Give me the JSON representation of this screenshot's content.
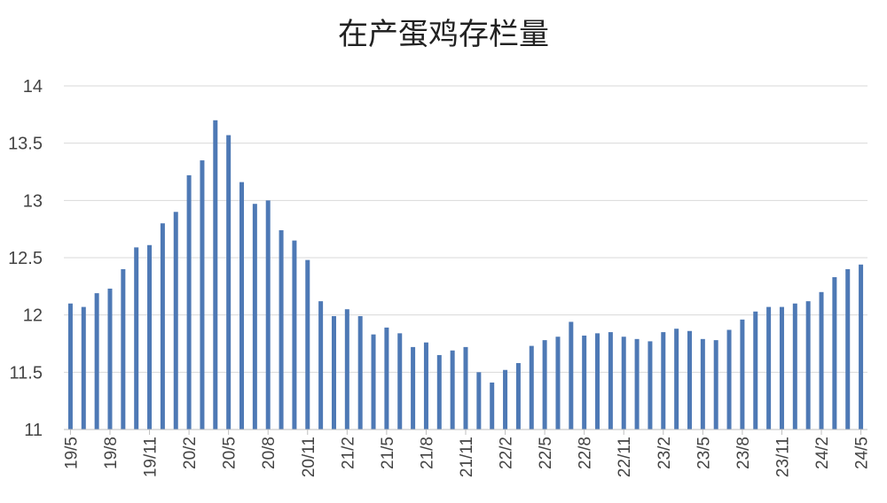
{
  "chart_data": {
    "type": "bar",
    "title": "在产蛋鸡存栏量",
    "xlabel": "",
    "ylabel": "",
    "ylim": [
      11,
      14
    ],
    "yticks": [
      "11",
      "11.5",
      "12",
      "12.5",
      "13",
      "13.5",
      "14"
    ],
    "grid": true,
    "legend": "none",
    "bar_color": "#4E79B5",
    "categories": [
      "19/5",
      "19/6",
      "19/7",
      "19/8",
      "19/9",
      "19/10",
      "19/11",
      "19/12",
      "20/1",
      "20/2",
      "20/3",
      "20/4",
      "20/5",
      "20/6",
      "20/7",
      "20/8",
      "20/9",
      "20/10",
      "20/11",
      "20/12",
      "21/1",
      "21/2",
      "21/3",
      "21/4",
      "21/5",
      "21/6",
      "21/7",
      "21/8",
      "21/9",
      "21/10",
      "21/11",
      "21/12",
      "22/1",
      "22/2",
      "22/3",
      "22/4",
      "22/5",
      "22/6",
      "22/7",
      "22/8",
      "22/9",
      "22/10",
      "22/11",
      "22/12",
      "23/1",
      "23/2",
      "23/3",
      "23/4",
      "23/5",
      "23/6",
      "23/7",
      "23/8",
      "23/9",
      "23/10",
      "23/11",
      "23/12",
      "24/1",
      "24/2",
      "24/3",
      "24/4",
      "24/5"
    ],
    "x_tick_labels": [
      "19/5",
      "19/8",
      "19/11",
      "20/2",
      "20/5",
      "20/8",
      "20/11",
      "21/2",
      "21/5",
      "21/8",
      "21/11",
      "22/2",
      "22/5",
      "22/8",
      "22/11",
      "23/2",
      "23/5",
      "23/8",
      "23/11",
      "24/2",
      "24/5"
    ],
    "values": [
      12.1,
      12.07,
      12.19,
      12.23,
      12.4,
      12.59,
      12.61,
      12.8,
      12.9,
      13.22,
      13.35,
      13.7,
      13.57,
      13.16,
      12.97,
      13.0,
      12.74,
      12.65,
      12.48,
      12.12,
      11.99,
      12.05,
      11.99,
      11.83,
      11.89,
      11.84,
      11.72,
      11.76,
      11.65,
      11.69,
      11.72,
      11.5,
      11.41,
      11.52,
      11.58,
      11.73,
      11.78,
      11.81,
      11.94,
      11.82,
      11.84,
      11.85,
      11.81,
      11.79,
      11.77,
      11.85,
      11.88,
      11.86,
      11.79,
      11.78,
      11.87,
      11.96,
      12.03,
      12.07,
      12.07,
      12.1,
      12.12,
      12.2,
      12.33,
      12.4,
      12.44
    ]
  }
}
